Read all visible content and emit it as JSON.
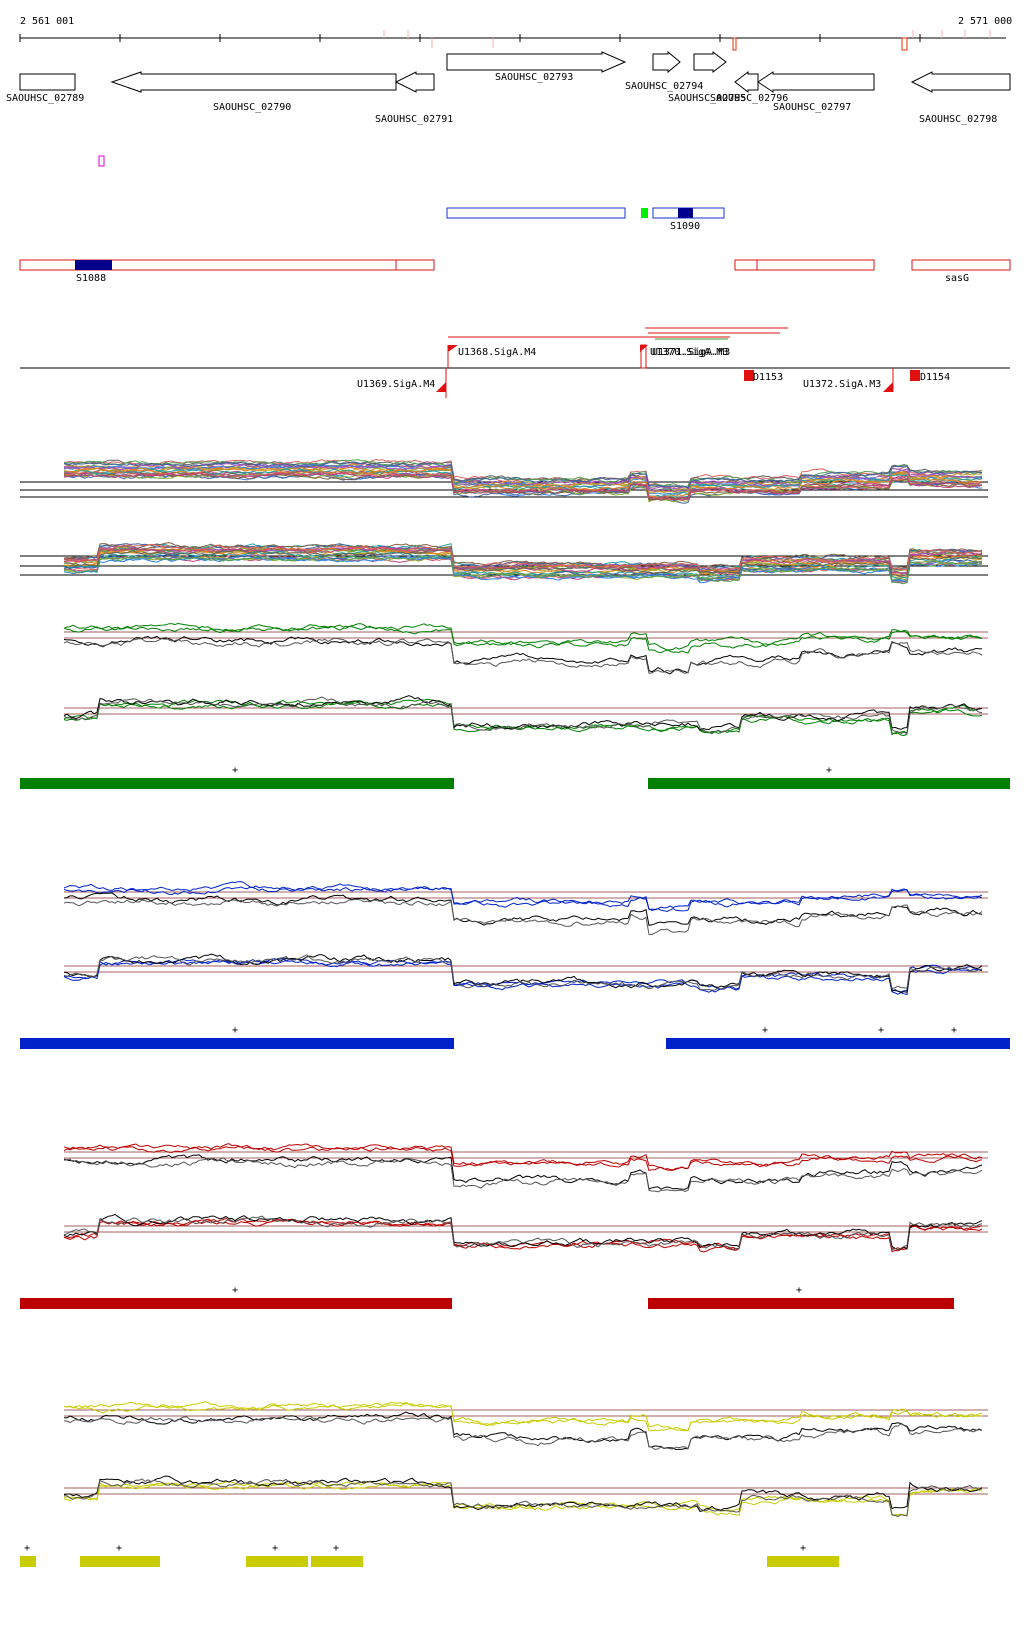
{
  "ruler": {
    "start_label": "2 561 001",
    "end_label": "2 571 000"
  },
  "genes": [
    {
      "id": "g1",
      "label": "SAOUHSC_02789",
      "strand": "+"
    },
    {
      "id": "g2",
      "label": "SAOUHSC_02790",
      "strand": "-"
    },
    {
      "id": "g3",
      "label": "SAOUHSC_02791",
      "strand": "-"
    },
    {
      "id": "g4",
      "label": "SAOUHSC_02793",
      "strand": "+"
    },
    {
      "id": "g5",
      "label": "SAOUHSC_02794",
      "strand": "+"
    },
    {
      "id": "g6",
      "label": "SAOUHSC_02795",
      "strand": "+"
    },
    {
      "id": "g7",
      "label": "SAOUHSC_02796",
      "strand": "-"
    },
    {
      "id": "g8",
      "label": "SAOUHSC_02797",
      "strand": "-"
    },
    {
      "id": "g9",
      "label": "SAOUHSC_02798",
      "strand": "-"
    }
  ],
  "segments": [
    {
      "id": "s1088",
      "label": "S1088",
      "strand": "-"
    },
    {
      "id": "s1090",
      "label": "S1090",
      "strand": "+"
    },
    {
      "id": "sasg",
      "label": "sasG",
      "strand": "-"
    }
  ],
  "promoters": [
    {
      "id": "p1",
      "label": "U1368.SigA.M4"
    },
    {
      "id": "p2",
      "label": "U1370.SigA.M3"
    },
    {
      "id": "p3",
      "label": "U1371.SigA.M3"
    },
    {
      "id": "p4",
      "label": "U1369.SigA.M4"
    },
    {
      "id": "p5",
      "label": "U1372.SigA.M3"
    },
    {
      "id": "p6",
      "label": "D1153"
    },
    {
      "id": "p7",
      "label": "D1154"
    }
  ],
  "conditions": [
    {
      "id": "green",
      "color": "#008000",
      "strand_marker": "+"
    },
    {
      "id": "blue",
      "color": "#0022c8",
      "strand_marker": "+"
    },
    {
      "id": "red",
      "color": "#bb0000",
      "strand_marker": "+"
    },
    {
      "id": "yellow",
      "color": "#c8cc00",
      "strand_marker": "+"
    }
  ]
}
